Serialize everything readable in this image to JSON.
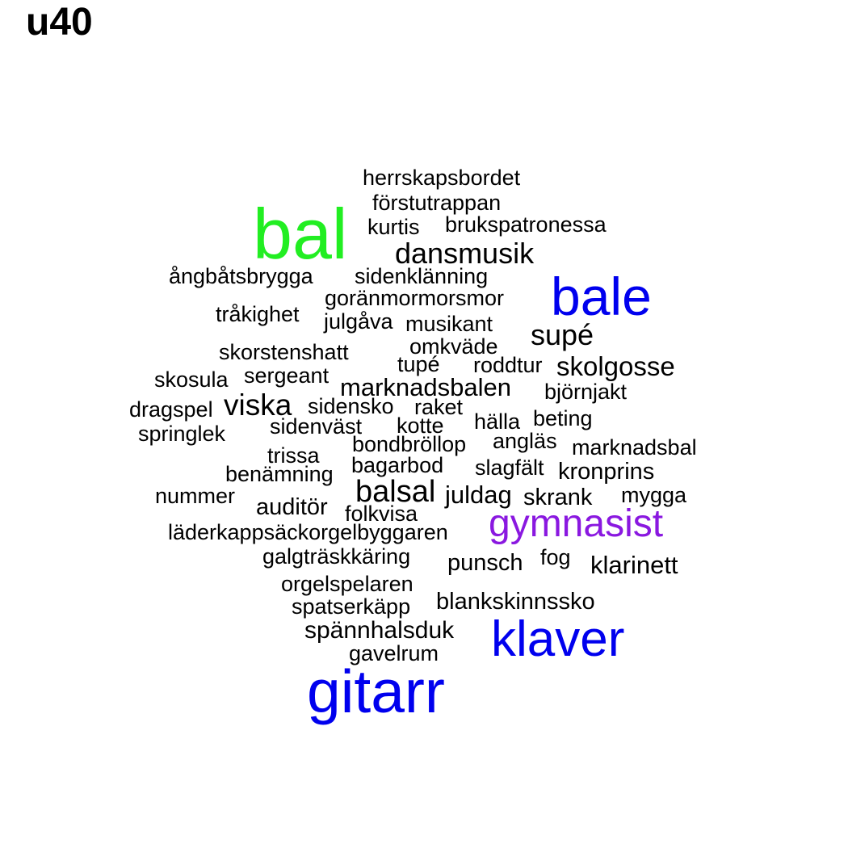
{
  "title": "u40",
  "chart_data": {
    "type": "wordcloud",
    "title": "u40",
    "colors": {
      "default": "#000000",
      "green": "#22ee22",
      "blue": "#0000ee",
      "purple": "#8a18e0"
    },
    "words": [
      {
        "text": "herrskapsbordet",
        "weight": 1,
        "color": "default"
      },
      {
        "text": "förstutrappan",
        "weight": 1,
        "color": "default"
      },
      {
        "text": "bal",
        "weight": 10,
        "color": "green"
      },
      {
        "text": "kurtis",
        "weight": 1,
        "color": "default"
      },
      {
        "text": "brukspatronessa",
        "weight": 1,
        "color": "default"
      },
      {
        "text": "dansmusik",
        "weight": 2,
        "color": "default"
      },
      {
        "text": "ångbåtsbrygga",
        "weight": 1,
        "color": "default"
      },
      {
        "text": "sidenklänning",
        "weight": 1,
        "color": "default"
      },
      {
        "text": "bale",
        "weight": 7,
        "color": "blue"
      },
      {
        "text": "goränmormorsmor",
        "weight": 1,
        "color": "default"
      },
      {
        "text": "tråkighet",
        "weight": 1,
        "color": "default"
      },
      {
        "text": "julgåva",
        "weight": 1,
        "color": "default"
      },
      {
        "text": "musikant",
        "weight": 1,
        "color": "default"
      },
      {
        "text": "supé",
        "weight": 2,
        "color": "default"
      },
      {
        "text": "omkväde",
        "weight": 1,
        "color": "default"
      },
      {
        "text": "skorstenshatt",
        "weight": 1,
        "color": "default"
      },
      {
        "text": "tupé",
        "weight": 1,
        "color": "default"
      },
      {
        "text": "roddtur",
        "weight": 1,
        "color": "default"
      },
      {
        "text": "skolgosse",
        "weight": 2,
        "color": "default"
      },
      {
        "text": "skosula",
        "weight": 1,
        "color": "default"
      },
      {
        "text": "sergeant",
        "weight": 1,
        "color": "default"
      },
      {
        "text": "marknadsbalen",
        "weight": 2,
        "color": "default"
      },
      {
        "text": "björnjakt",
        "weight": 1,
        "color": "default"
      },
      {
        "text": "dragspel",
        "weight": 1,
        "color": "default"
      },
      {
        "text": "viska",
        "weight": 2,
        "color": "default"
      },
      {
        "text": "sidensko",
        "weight": 1,
        "color": "default"
      },
      {
        "text": "raket",
        "weight": 1,
        "color": "default"
      },
      {
        "text": "hälla",
        "weight": 1,
        "color": "default"
      },
      {
        "text": "beting",
        "weight": 1,
        "color": "default"
      },
      {
        "text": "springlek",
        "weight": 1,
        "color": "default"
      },
      {
        "text": "sidenväst",
        "weight": 1,
        "color": "default"
      },
      {
        "text": "kotte",
        "weight": 1,
        "color": "default"
      },
      {
        "text": "bondbröllop",
        "weight": 1,
        "color": "default"
      },
      {
        "text": "angläs",
        "weight": 1,
        "color": "default"
      },
      {
        "text": "marknadsbal",
        "weight": 1,
        "color": "default"
      },
      {
        "text": "trissa",
        "weight": 1,
        "color": "default"
      },
      {
        "text": "bagarbod",
        "weight": 1,
        "color": "default"
      },
      {
        "text": "slagfält",
        "weight": 1,
        "color": "default"
      },
      {
        "text": "kronprins",
        "weight": 1,
        "color": "default"
      },
      {
        "text": "benämning",
        "weight": 1,
        "color": "default"
      },
      {
        "text": "nummer",
        "weight": 1,
        "color": "default"
      },
      {
        "text": "balsal",
        "weight": 2,
        "color": "default"
      },
      {
        "text": "juldag",
        "weight": 1,
        "color": "default"
      },
      {
        "text": "skrank",
        "weight": 1,
        "color": "default"
      },
      {
        "text": "mygga",
        "weight": 1,
        "color": "default"
      },
      {
        "text": "auditör",
        "weight": 1,
        "color": "default"
      },
      {
        "text": "folkvisa",
        "weight": 1,
        "color": "default"
      },
      {
        "text": "gymnasist",
        "weight": 3,
        "color": "purple"
      },
      {
        "text": "läderkappsäckorgelbyggaren",
        "weight": 1,
        "color": "default"
      },
      {
        "text": "galgträskkäring",
        "weight": 1,
        "color": "default"
      },
      {
        "text": "punsch",
        "weight": 1,
        "color": "default"
      },
      {
        "text": "fog",
        "weight": 1,
        "color": "default"
      },
      {
        "text": "klarinett",
        "weight": 1,
        "color": "default"
      },
      {
        "text": "orgelspelaren",
        "weight": 1,
        "color": "default"
      },
      {
        "text": "spatserkäpp",
        "weight": 1,
        "color": "default"
      },
      {
        "text": "blankskinnssko",
        "weight": 1,
        "color": "default"
      },
      {
        "text": "spännhalsduk",
        "weight": 1,
        "color": "default"
      },
      {
        "text": "klaver",
        "weight": 6,
        "color": "blue"
      },
      {
        "text": "gavelrum",
        "weight": 1,
        "color": "default"
      },
      {
        "text": "gitarr",
        "weight": 9,
        "color": "blue"
      }
    ]
  }
}
